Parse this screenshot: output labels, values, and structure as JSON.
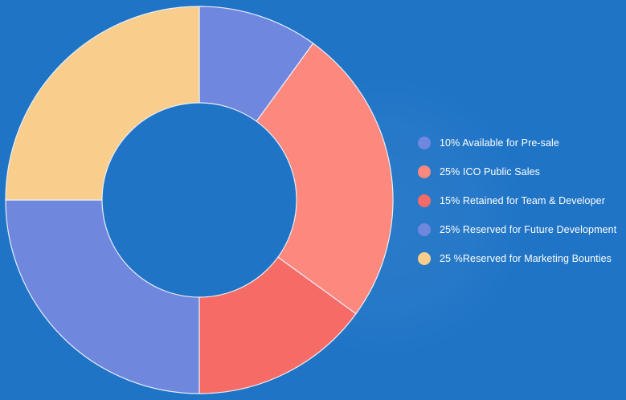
{
  "chart_data": {
    "type": "pie",
    "donut": true,
    "legend_position": "right",
    "slices": [
      {
        "label": "10% Available for Pre-sale",
        "value": 10,
        "color": "#7087df"
      },
      {
        "label": "25% ICO Public Sales",
        "value": 25,
        "color": "#fc887e"
      },
      {
        "label": "15% Retained for Team & Developer",
        "value": 15,
        "color": "#f76b66"
      },
      {
        "label": "25% Reserved for Future Development",
        "value": 25,
        "color": "#6f87dd"
      },
      {
        "label": "25 %Reserved for Marketing Bounties",
        "value": 25,
        "color": "#f9cd8c"
      }
    ]
  },
  "colors": {
    "background": "#1f74c6",
    "hole": "#1f74c6",
    "slice_border": "#e8eef7"
  }
}
